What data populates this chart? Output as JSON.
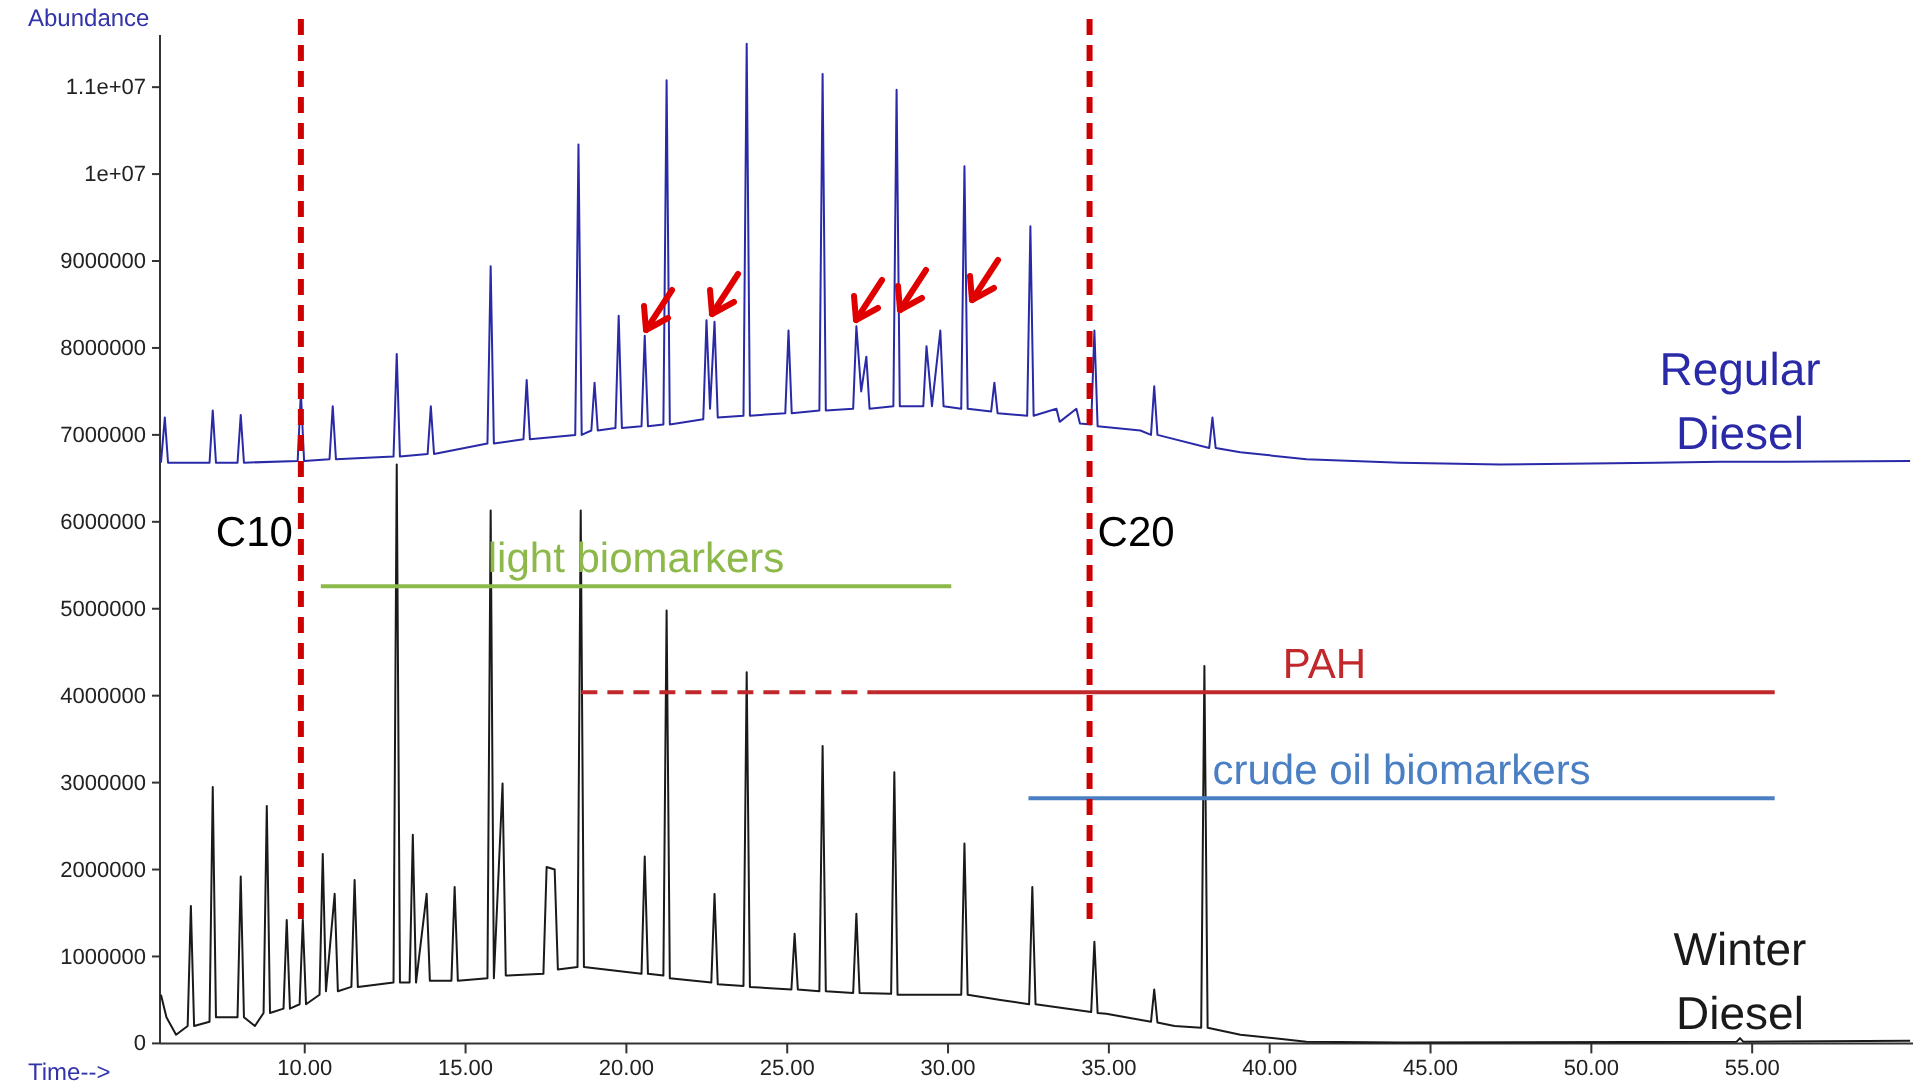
{
  "chart_data": {
    "type": "line",
    "xlabel": "Time-->",
    "ylabel": "Abundance",
    "xlim": [
      5.5,
      60
    ],
    "ylim": [
      0,
      11600000
    ],
    "xticks": [
      {
        "value": 10,
        "label": "10.00"
      },
      {
        "value": 15,
        "label": "15.00"
      },
      {
        "value": 20,
        "label": "20.00"
      },
      {
        "value": 25,
        "label": "25.00"
      },
      {
        "value": 30,
        "label": "30.00"
      },
      {
        "value": 35,
        "label": "35.00"
      },
      {
        "value": 40,
        "label": "40.00"
      },
      {
        "value": 45,
        "label": "45.00"
      },
      {
        "value": 50,
        "label": "50.00"
      },
      {
        "value": 55,
        "label": "55.00"
      }
    ],
    "yticks": [
      0,
      1000000,
      2000000,
      3000000,
      4000000,
      5000000,
      6000000,
      7000000,
      8000000,
      9000000,
      {
        "value": 10000000,
        "label": "1e+07"
      },
      {
        "value": 11000000,
        "label": "1.1e+07"
      }
    ],
    "grid": false,
    "legend": false,
    "marker": "none",
    "line_style": "solid",
    "series": [
      {
        "name": "Regular Diesel",
        "color": "#2a2aa8",
        "x": [
          5.53,
          5.65,
          5.75,
          7.04,
          7.14,
          7.24,
          7.91,
          8.01,
          8.11,
          9.78,
          9.88,
          9.98,
          10.77,
          10.87,
          10.97,
          12.76,
          12.86,
          12.96,
          13.82,
          13.92,
          14.02,
          15.68,
          15.78,
          15.88,
          16.8,
          16.9,
          17.0,
          18.41,
          18.51,
          18.61,
          18.91,
          19.01,
          19.11,
          19.66,
          19.76,
          19.86,
          20.47,
          20.57,
          20.67,
          21.15,
          21.25,
          21.35,
          22.39,
          22.49,
          22.6,
          22.74,
          22.84,
          23.64,
          23.74,
          23.84,
          24.94,
          25.04,
          25.14,
          26.0,
          26.1,
          26.2,
          27.05,
          27.15,
          27.3,
          27.46,
          27.56,
          28.3,
          28.4,
          28.5,
          29.23,
          29.33,
          29.5,
          29.76,
          29.86,
          30.41,
          30.51,
          30.61,
          31.34,
          31.44,
          31.54,
          32.46,
          32.56,
          32.66,
          33.37,
          33.47,
          33.99,
          34.1,
          34.45,
          34.55,
          34.65,
          35.98,
          36.31,
          36.41,
          36.51,
          38.12,
          38.22,
          38.32,
          39.09,
          41.14,
          44.06,
          47.17,
          50.0,
          52.0,
          54.0,
          56.0,
          59.91
        ],
        "values": [
          6680000,
          7200000,
          6680000,
          6680000,
          7280000,
          6680000,
          6680000,
          7230000,
          6680000,
          6700000,
          7490000,
          6700000,
          6720000,
          7330000,
          6720000,
          6750000,
          7930000,
          6750000,
          6780000,
          7330000,
          6780000,
          6900000,
          8940000,
          6900000,
          6950000,
          7630000,
          6950000,
          7000000,
          10340000,
          7000000,
          7050000,
          7600000,
          7050000,
          7080000,
          8370000,
          7080000,
          7100000,
          8140000,
          7100000,
          7120000,
          11080000,
          7120000,
          7180000,
          8320000,
          7300000,
          8300000,
          7200000,
          7220000,
          11500000,
          7220000,
          7250000,
          8200000,
          7250000,
          7280000,
          11150000,
          7280000,
          7300000,
          8250000,
          7500000,
          7900000,
          7300000,
          7330000,
          10970000,
          7330000,
          7330000,
          8020000,
          7330000,
          8200000,
          7330000,
          7300000,
          10090000,
          7300000,
          7270000,
          7600000,
          7250000,
          7220000,
          9400000,
          7220000,
          7300000,
          7150000,
          7300000,
          7130000,
          7120000,
          8200000,
          7100000,
          7050000,
          7000000,
          7560000,
          7000000,
          6850000,
          7200000,
          6850000,
          6800000,
          6720000,
          6680000,
          6660000,
          6670000,
          6680000,
          6690000,
          6690000,
          6700000
        ]
      },
      {
        "name": "Winter Diesel",
        "color": "#1a1a1a",
        "x": [
          5.53,
          5.7,
          6.0,
          6.36,
          6.46,
          6.56,
          7.04,
          7.14,
          7.24,
          7.91,
          8.01,
          8.11,
          8.45,
          8.72,
          8.82,
          8.92,
          9.34,
          9.44,
          9.54,
          9.84,
          9.94,
          10.04,
          10.46,
          10.56,
          10.66,
          10.93,
          11.03,
          11.45,
          11.55,
          11.65,
          12.76,
          12.86,
          12.96,
          13.26,
          13.36,
          13.46,
          13.79,
          13.89,
          14.56,
          14.66,
          14.76,
          15.68,
          15.78,
          15.88,
          16.15,
          16.25,
          17.42,
          17.52,
          17.77,
          17.87,
          18.48,
          18.58,
          18.68,
          20.47,
          20.57,
          20.67,
          21.15,
          21.25,
          21.35,
          22.64,
          22.74,
          22.84,
          23.64,
          23.74,
          23.84,
          25.13,
          25.23,
          25.33,
          26.0,
          26.1,
          26.2,
          27.05,
          27.15,
          27.25,
          28.23,
          28.33,
          28.43,
          30.41,
          30.51,
          30.61,
          31.63,
          32.52,
          32.62,
          32.72,
          34.45,
          34.55,
          34.65,
          34.92,
          36.31,
          36.41,
          36.51,
          37.04,
          37.87,
          37.97,
          38.07,
          39.09,
          41.14,
          44.06,
          54.52,
          54.62,
          54.72,
          59.91
        ],
        "values": [
          560000,
          300000,
          100000,
          200000,
          1580000,
          200000,
          250000,
          2950000,
          300000,
          300000,
          1920000,
          300000,
          200000,
          350000,
          2730000,
          350000,
          400000,
          1420000,
          400000,
          450000,
          1420000,
          450000,
          560000,
          2180000,
          600000,
          1720000,
          600000,
          650000,
          1880000,
          650000,
          700000,
          6660000,
          700000,
          700000,
          2400000,
          700000,
          1720000,
          720000,
          720000,
          1800000,
          720000,
          750000,
          6130000,
          750000,
          2990000,
          780000,
          800000,
          2030000,
          2000000,
          850000,
          880000,
          6130000,
          880000,
          800000,
          2150000,
          800000,
          780000,
          4980000,
          750000,
          700000,
          1720000,
          680000,
          660000,
          4270000,
          650000,
          620000,
          1260000,
          620000,
          600000,
          3420000,
          600000,
          580000,
          1490000,
          580000,
          570000,
          3120000,
          560000,
          560000,
          2300000,
          560000,
          500000,
          450000,
          1800000,
          450000,
          360000,
          1170000,
          350000,
          340000,
          250000,
          620000,
          240000,
          200000,
          180000,
          4340000,
          180000,
          100000,
          20000,
          10000,
          20000,
          60000,
          20000,
          30000
        ]
      },
      {
        "name": "light biomarkers",
        "color": "#8db84a",
        "x": [
          10.5,
          30.1
        ],
        "values": [
          5260000,
          5260000
        ]
      },
      {
        "color": "#c0282b",
        "line_style": "dashed",
        "x": [
          18.6,
          27.7
        ],
        "values": [
          4040000,
          4040000
        ]
      },
      {
        "name": "PAH",
        "color": "#c0282b",
        "x": [
          27.7,
          55.7
        ],
        "values": [
          4040000,
          4040000
        ]
      },
      {
        "name": "crude oil biomarkers",
        "color": "#4a7fc4",
        "x": [
          32.5,
          55.7
        ],
        "values": [
          2820000,
          2820000
        ]
      }
    ],
    "ref_lines": [
      {
        "axis": "x",
        "value": 9.88,
        "label": "C10",
        "color": "#cc0000",
        "line_style": "dashed"
      },
      {
        "axis": "x",
        "value": 34.4,
        "label": "C20",
        "color": "#cc0000",
        "line_style": "dashed"
      }
    ]
  }
}
